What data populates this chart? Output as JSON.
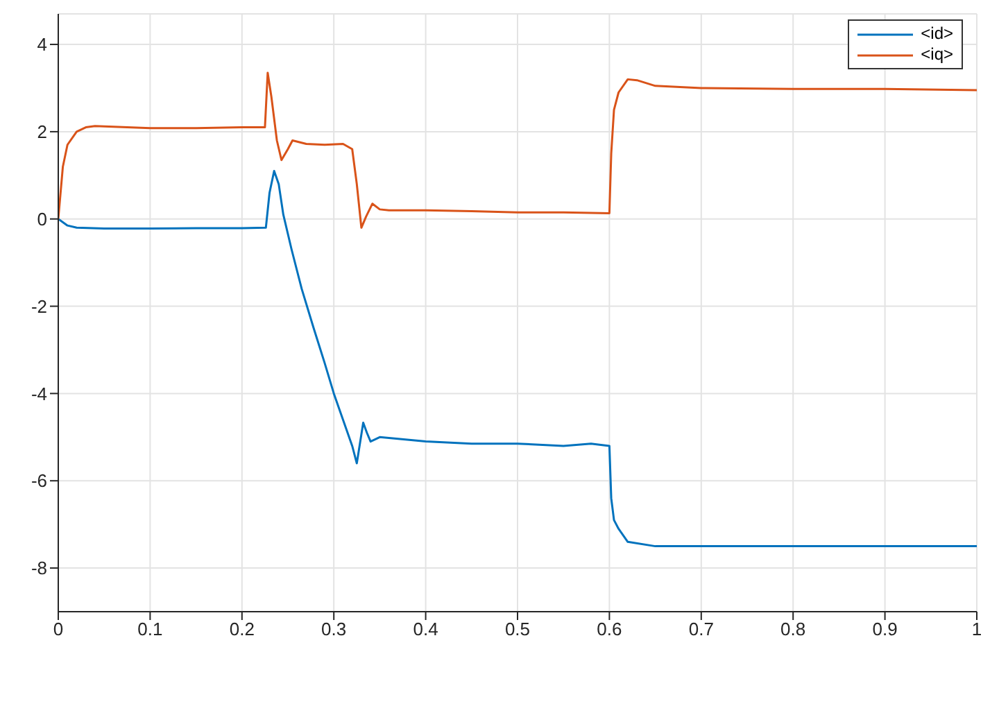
{
  "chart_data": {
    "type": "line",
    "xlim": [
      0,
      1
    ],
    "xticks": [
      0,
      0.1,
      0.2,
      0.3,
      0.4,
      0.5,
      0.6,
      0.7,
      0.8,
      0.9,
      1
    ],
    "ylim": [
      -9,
      4.7
    ],
    "yticks": [
      -8,
      -6,
      -4,
      -2,
      0,
      2,
      4
    ],
    "grid": true,
    "legend": "top right",
    "marker": "none",
    "line_style": "solid",
    "series": [
      {
        "name": "<id>",
        "color": "#0072bd",
        "x": [
          0,
          0.01,
          0.02,
          0.05,
          0.1,
          0.15,
          0.2,
          0.226,
          0.23,
          0.235,
          0.24,
          0.245,
          0.254,
          0.265,
          0.278,
          0.29,
          0.3,
          0.31,
          0.32,
          0.325,
          0.328,
          0.332,
          0.336,
          0.34,
          0.35,
          0.4,
          0.45,
          0.5,
          0.55,
          0.58,
          0.6,
          0.602,
          0.605,
          0.61,
          0.62,
          0.65,
          0.7,
          0.8,
          0.9,
          1
        ],
        "values": [
          0,
          -0.15,
          -0.2,
          -0.22,
          -0.22,
          -0.21,
          -0.21,
          -0.2,
          0.6,
          1.1,
          0.8,
          0.1,
          -0.7,
          -1.6,
          -2.5,
          -3.3,
          -4.0,
          -4.6,
          -5.2,
          -5.6,
          -5.2,
          -4.67,
          -4.9,
          -5.1,
          -5.0,
          -5.1,
          -5.15,
          -5.15,
          -5.2,
          -5.15,
          -5.2,
          -6.4,
          -6.9,
          -7.1,
          -7.4,
          -7.5,
          -7.5,
          -7.5,
          -7.5,
          -7.5
        ]
      },
      {
        "name": "<iq>",
        "color": "#d95319",
        "x": [
          0,
          0.005,
          0.01,
          0.02,
          0.03,
          0.04,
          0.1,
          0.15,
          0.2,
          0.225,
          0.228,
          0.232,
          0.238,
          0.243,
          0.25,
          0.255,
          0.27,
          0.29,
          0.31,
          0.32,
          0.325,
          0.33,
          0.335,
          0.342,
          0.35,
          0.36,
          0.4,
          0.45,
          0.5,
          0.55,
          0.6,
          0.602,
          0.605,
          0.61,
          0.62,
          0.63,
          0.65,
          0.7,
          0.8,
          0.9,
          1
        ],
        "values": [
          0,
          1.2,
          1.7,
          2.0,
          2.1,
          2.13,
          2.08,
          2.08,
          2.1,
          2.1,
          3.35,
          2.8,
          1.8,
          1.35,
          1.6,
          1.8,
          1.72,
          1.7,
          1.72,
          1.6,
          0.8,
          -0.2,
          0.05,
          0.35,
          0.22,
          0.2,
          0.2,
          0.18,
          0.15,
          0.15,
          0.13,
          1.5,
          2.5,
          2.9,
          3.2,
          3.18,
          3.05,
          3.0,
          2.98,
          2.98,
          2.95
        ]
      }
    ]
  }
}
